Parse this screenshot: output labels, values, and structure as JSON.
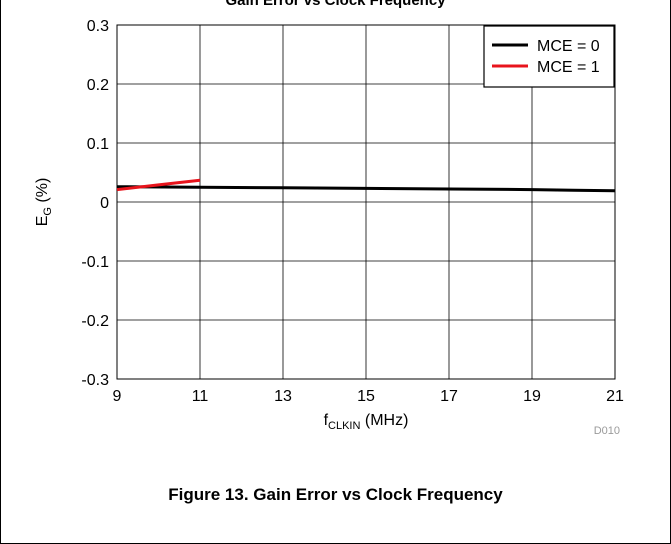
{
  "top_caption": "Gain Error vs Clock Frequency",
  "figure_caption": "Figure 13. Gain Error vs Clock Frequency",
  "chart_data": {
    "type": "line",
    "xlabel": {
      "main": "f",
      "sub": "CLKIN",
      "rest": " (MHz)"
    },
    "ylabel": {
      "main": "E",
      "sub": "G",
      "rest": " (%)"
    },
    "xlim": [
      9,
      21
    ],
    "ylim": [
      -0.3,
      0.3
    ],
    "xticks": [
      9,
      11,
      13,
      15,
      17,
      19,
      21
    ],
    "xtick_labels": [
      "9",
      "11",
      "13",
      "15",
      "17",
      "19",
      "21"
    ],
    "yticks": [
      0.3,
      0.2,
      0.1,
      0,
      -0.1,
      -0.2,
      -0.3
    ],
    "ytick_labels": [
      "0.3",
      "0.2",
      "0.1",
      "0",
      "-0.1",
      "-0.2",
      "-0.3"
    ],
    "grid": true,
    "legend_position": "top-right",
    "series": [
      {
        "name": "MCE = 0",
        "color": "#000000",
        "x": [
          9,
          11,
          13,
          15,
          17,
          19,
          20,
          21
        ],
        "y": [
          0.026,
          0.025,
          0.024,
          0.023,
          0.022,
          0.021,
          0.02,
          0.019
        ]
      },
      {
        "name": "MCE = 1",
        "color": "#e8141c",
        "x": [
          9,
          10,
          11
        ],
        "y": [
          0.021,
          0.029,
          0.037
        ]
      }
    ],
    "annotation": "D010"
  }
}
